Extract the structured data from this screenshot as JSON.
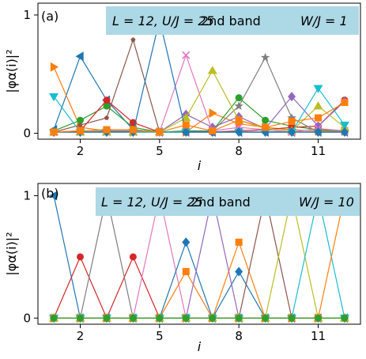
{
  "chart_data": [
    {
      "type": "line",
      "panel_label": "(a)",
      "annotation": {
        "lhs": "L = 12, U/J = 25",
        "band": "2nd band",
        "disorder": "W/J = 1"
      },
      "xlabel": "i",
      "ylabel": "|φα(i)|²",
      "x": [
        1,
        2,
        3,
        4,
        5,
        6,
        7,
        8,
        9,
        10,
        11,
        12
      ],
      "xticks": [
        2,
        5,
        8,
        11
      ],
      "yticks": [
        0,
        1
      ],
      "xlim": [
        0.4,
        12.6
      ],
      "ylim": [
        -0.05,
        1.1
      ],
      "grid": false,
      "series": [
        {
          "color": "#1f77b4",
          "marker": "triangle-left",
          "values": [
            0.03,
            0.65,
            0.28,
            0.03,
            0.01,
            0.01,
            0.01,
            0.01,
            0.01,
            0.01,
            0.01,
            0.01
          ]
        },
        {
          "color": "#ff7f0e",
          "marker": "triangle-right",
          "values": [
            0.56,
            0.05,
            0.02,
            0.01,
            0.01,
            0.01,
            0.17,
            0.08,
            0.05,
            0.03,
            0.02,
            0.02
          ]
        },
        {
          "color": "#2ca02c",
          "marker": "circle",
          "values": [
            0.02,
            0.11,
            0.23,
            0.05,
            0.01,
            0.02,
            0.02,
            0.3,
            0.11,
            0.06,
            0.03,
            0.02
          ]
        },
        {
          "color": "#d62728",
          "marker": "circle",
          "values": [
            0.01,
            0.02,
            0.28,
            0.09,
            0.01,
            0.01,
            0.01,
            0.02,
            0.03,
            0.05,
            0.06,
            0.28
          ]
        },
        {
          "color": "#9467bd",
          "marker": "diamond",
          "values": [
            0.01,
            0.01,
            0.01,
            0.01,
            0.01,
            0.16,
            0.05,
            0.14,
            0.04,
            0.31,
            0.06,
            0.27
          ]
        },
        {
          "color": "#8c564b",
          "marker": "pentagon",
          "values": [
            0.01,
            0.07,
            0.13,
            0.79,
            0.01,
            0.01,
            0.01,
            0.01,
            0.01,
            0.01,
            0.01,
            0.01
          ]
        },
        {
          "color": "#e377c2",
          "marker": "x",
          "values": [
            0.01,
            0.01,
            0.01,
            0.01,
            0.01,
            0.66,
            0.02,
            0.05,
            0.03,
            0.01,
            0.04,
            0.02
          ]
        },
        {
          "color": "#7f7f7f",
          "marker": "star",
          "values": [
            0.01,
            0.01,
            0.02,
            0.02,
            0.01,
            0.01,
            0.02,
            0.23,
            0.64,
            0.13,
            0.01,
            0.01
          ]
        },
        {
          "color": "#bcbd22",
          "marker": "triangle-up",
          "values": [
            0.01,
            0.01,
            0.01,
            0.01,
            0.01,
            0.13,
            0.53,
            0.11,
            0.04,
            0.02,
            0.23,
            0.05
          ]
        },
        {
          "color": "#17becf",
          "marker": "triangle-down",
          "values": [
            0.31,
            0.01,
            0.01,
            0.01,
            0.01,
            0.01,
            0.01,
            0.01,
            0.01,
            0.01,
            0.38,
            0.07
          ]
        },
        {
          "color": "#1f77b4",
          "marker": "diamond",
          "values": [
            0.01,
            0.01,
            0.01,
            0.01,
            0.96,
            0.01,
            0.01,
            0.01,
            0.01,
            0.01,
            0.01,
            0.01
          ]
        },
        {
          "color": "#ff7f0e",
          "marker": "square",
          "values": [
            0.01,
            0.02,
            0.03,
            0.03,
            0.01,
            0.07,
            0.02,
            0.11,
            0.05,
            0.1,
            0.13,
            0.26
          ]
        }
      ]
    },
    {
      "type": "line",
      "panel_label": "(b)",
      "annotation": {
        "lhs": "L = 12, U/J = 25",
        "band": "2nd band",
        "disorder": "W/J = 10"
      },
      "xlabel": "i",
      "ylabel": "|φα(i)|²",
      "x": [
        1,
        2,
        3,
        4,
        5,
        6,
        7,
        8,
        9,
        10,
        11,
        12
      ],
      "xticks": [
        2,
        5,
        8,
        11
      ],
      "yticks": [
        0,
        1
      ],
      "xlim": [
        0.4,
        12.6
      ],
      "ylim": [
        -0.05,
        1.1
      ],
      "grid": false,
      "series": [
        {
          "color": "#1f77b4",
          "marker": "triangle-left",
          "values": [
            1.0,
            0,
            0,
            0,
            0,
            0,
            0,
            0,
            0,
            0,
            0,
            0
          ]
        },
        {
          "color": "#d62728",
          "marker": "circle",
          "values": [
            0,
            0.5,
            0,
            0.5,
            0,
            0,
            0,
            0,
            0,
            0,
            0,
            0
          ]
        },
        {
          "color": "#7f7f7f",
          "marker": "star",
          "values": [
            0,
            0,
            1.0,
            0,
            0,
            0,
            0,
            0,
            0,
            0,
            0,
            0
          ]
        },
        {
          "color": "#e377c2",
          "marker": "x",
          "values": [
            0,
            0,
            0,
            0,
            1.0,
            0,
            0,
            0,
            0,
            0,
            0,
            0
          ]
        },
        {
          "color": "#1f77b4",
          "marker": "diamond",
          "values": [
            0,
            0,
            0,
            0,
            0,
            0.62,
            0,
            0.38,
            0,
            0,
            0,
            0
          ]
        },
        {
          "color": "#ff7f0e",
          "marker": "square",
          "values": [
            0,
            0,
            0,
            0,
            0,
            0.38,
            0,
            0.62,
            0,
            0,
            0,
            0
          ]
        },
        {
          "color": "#9467bd",
          "marker": "diamond",
          "values": [
            0,
            0,
            0,
            0,
            0,
            0,
            1.0,
            0,
            0,
            0,
            0,
            0
          ]
        },
        {
          "color": "#8c564b",
          "marker": "pentagon",
          "values": [
            0,
            0,
            0,
            0,
            0,
            0,
            0,
            0,
            1.0,
            0,
            0,
            0
          ]
        },
        {
          "color": "#bcbd22",
          "marker": "triangle-up",
          "values": [
            0,
            0,
            0,
            0,
            0,
            0,
            0,
            0,
            0,
            1.0,
            0,
            0
          ]
        },
        {
          "color": "#17becf",
          "marker": "triangle-down",
          "values": [
            0,
            0,
            0,
            0,
            0,
            0,
            0,
            0,
            0,
            0,
            1.0,
            0
          ]
        },
        {
          "color": "#ff7f0e",
          "marker": "triangle-right",
          "values": [
            0,
            0,
            0,
            0,
            0,
            0,
            0,
            0,
            0,
            0,
            0,
            1.0
          ]
        },
        {
          "color": "#2ca02c",
          "marker": "circle",
          "values": [
            0,
            0,
            0,
            0,
            0,
            0,
            0,
            0,
            0,
            0,
            0,
            0
          ]
        }
      ]
    }
  ]
}
